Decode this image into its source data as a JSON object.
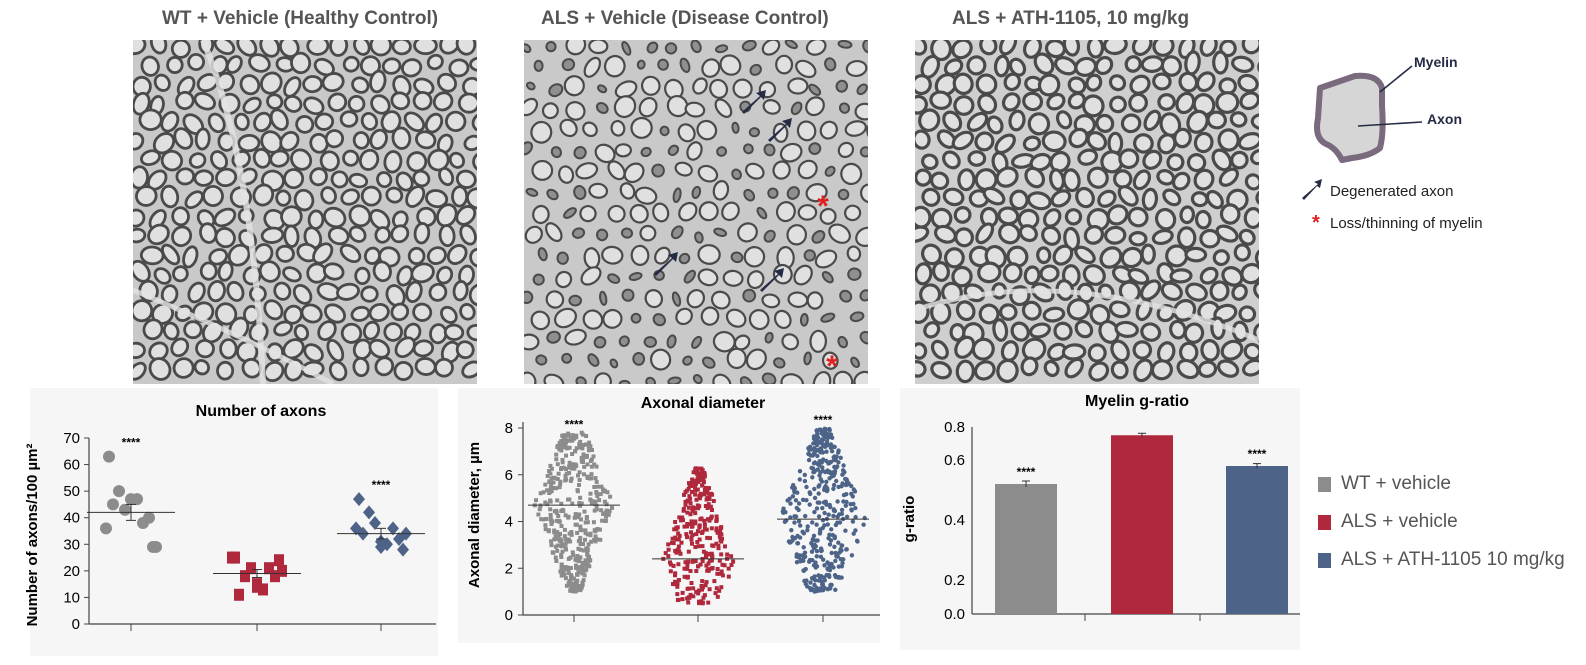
{
  "images": {
    "titles": [
      "WT + Vehicle (Healthy Control)",
      "ALS + Vehicle (Disease Control)",
      "ALS + ATH-1105, 10 mg/kg"
    ]
  },
  "diagram": {
    "myelin_label": "Myelin",
    "axon_label": "Axon",
    "degenerated_label": "Degenerated axon",
    "loss_label": "Loss/thinning of myelin",
    "asterisk": "*",
    "myelin_color": "#7a6a7e",
    "axon_color": "#d6d6d6",
    "arrow_color": "#252b45",
    "asterisk_color": "#e0201c"
  },
  "legend": {
    "items": [
      {
        "label": "WT + vehicle",
        "color": "#8c8c8c"
      },
      {
        "label": "ALS + vehicle",
        "color": "#b0283c"
      },
      {
        "label": "ALS + ATH-1105 10 mg/kg",
        "color": "#4d6488"
      }
    ]
  },
  "chart_data": [
    {
      "type": "scatter",
      "title": "Number of axons",
      "ylabel": "Number of axons/100 µm²",
      "ylim": [
        0,
        70
      ],
      "yticks": [
        "0",
        "10",
        "20",
        "30",
        "40",
        "50",
        "60",
        "70"
      ],
      "groups": [
        "WT + vehicle",
        "ALS + vehicle",
        "ALS + ATH-1105 10 mg/kg"
      ],
      "series": [
        {
          "values": [
            63,
            50,
            47,
            38,
            29,
            45,
            40,
            43,
            47,
            36,
            29
          ],
          "mean": 42,
          "sem": 3,
          "marker": "circle",
          "sig": "****"
        },
        {
          "values": [
            25,
            18,
            14,
            21,
            24,
            11,
            18,
            21,
            13,
            25,
            20,
            15
          ],
          "mean": 19,
          "sem": 1.5,
          "marker": "square",
          "sig": ""
        },
        {
          "values": [
            47,
            42,
            31,
            36,
            28,
            34,
            32,
            38,
            30,
            36,
            34,
            29
          ],
          "mean": 34,
          "sem": 2,
          "marker": "diamond",
          "sig": "****"
        }
      ]
    },
    {
      "type": "scatter",
      "title": "Axonal diameter",
      "ylabel": "Axonal diameter, µm",
      "ylim": [
        0,
        8
      ],
      "yticks": [
        "0",
        "2",
        "4",
        "6",
        "8"
      ],
      "groups": [
        "WT + vehicle",
        "ALS + vehicle",
        "ALS + ATH-1105 10 mg/kg"
      ],
      "series": [
        {
          "range": [
            1.0,
            7.8
          ],
          "center": 4.7,
          "mean": 4.7,
          "n": 420,
          "marker": "square",
          "sig": "****"
        },
        {
          "range": [
            0.5,
            6.3
          ],
          "center": 2.3,
          "mean": 2.4,
          "n": 300,
          "marker": "square",
          "sig": ""
        },
        {
          "range": [
            1.0,
            8.0
          ],
          "center": 4.1,
          "mean": 4.1,
          "n": 400,
          "marker": "circle",
          "sig": "****"
        }
      ]
    },
    {
      "type": "bar",
      "title": "Myelin g-ratio",
      "ylabel": "g-ratio",
      "yticks": [
        "0.0",
        "0.2",
        "0.4",
        "0.6",
        "0.8"
      ],
      "categories": [
        "WT + vehicle",
        "ALS + vehicle",
        "ALS + ATH-1105 10 mg/kg"
      ],
      "values": [
        0.52,
        0.75,
        0.58
      ],
      "errors": [
        0.01,
        0.012,
        0.008
      ],
      "sig": [
        "****",
        "",
        "****"
      ]
    }
  ]
}
